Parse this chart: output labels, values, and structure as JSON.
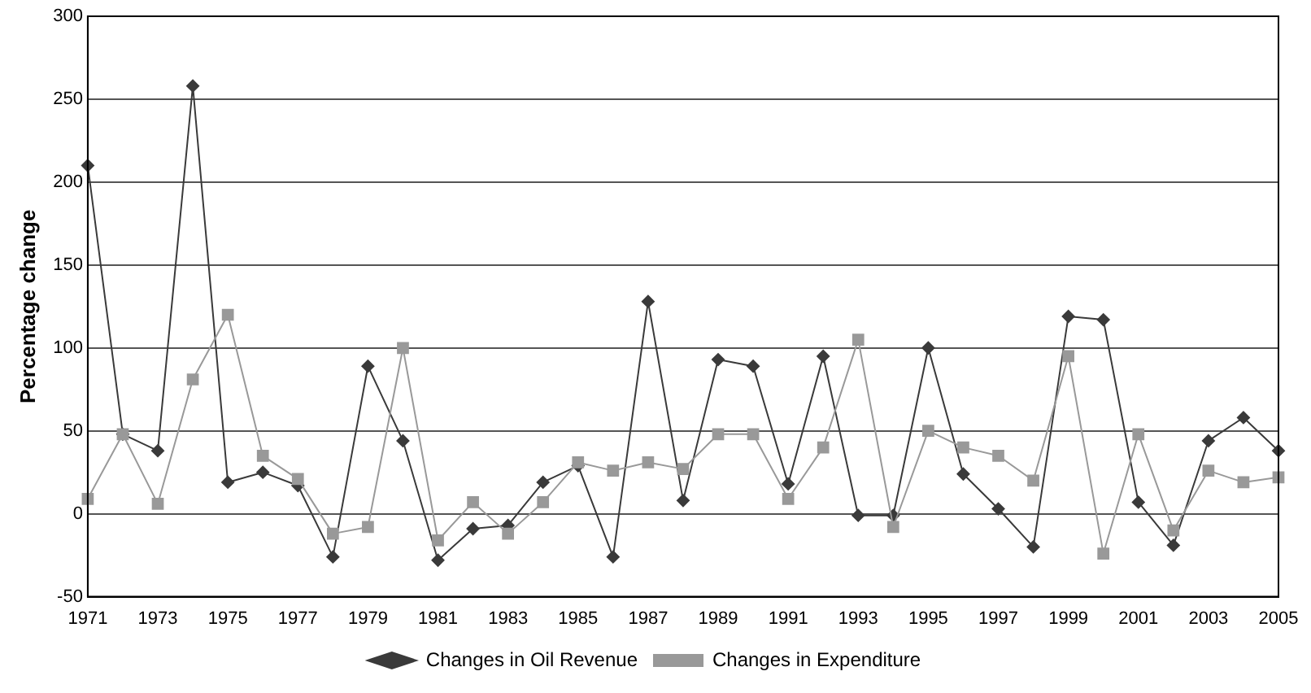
{
  "chart_data": {
    "type": "line",
    "ylabel": "Percentage change",
    "categories": [
      "1971",
      null,
      "1973",
      null,
      "1975",
      null,
      "1977",
      null,
      "1979",
      null,
      "1981",
      null,
      "1983",
      null,
      "1985",
      null,
      "1987",
      null,
      "1989",
      null,
      "1991",
      null,
      "1993",
      null,
      "1995",
      null,
      "1997",
      null,
      "1999",
      null,
      "2001",
      null,
      "2003",
      null,
      "2005"
    ],
    "series": [
      {
        "name": "Changes in Oil Revenue",
        "color": "#3a3a3a",
        "marker": "diamond",
        "values": [
          210,
          48,
          38,
          258,
          19,
          25,
          17,
          -26,
          89,
          44,
          -28,
          -9,
          -7,
          19,
          29,
          -26,
          128,
          8,
          93,
          89,
          18,
          95,
          -1,
          -1,
          100,
          24,
          3,
          -20,
          119,
          117,
          7,
          -19,
          44,
          58,
          38
        ]
      },
      {
        "name": "Changes in Expenditure",
        "color": "#999999",
        "marker": "square",
        "values": [
          9,
          48,
          6,
          81,
          120,
          35,
          21,
          -12,
          -8,
          100,
          -16,
          7,
          -12,
          7,
          31,
          26,
          31,
          27,
          48,
          48,
          9,
          40,
          105,
          -8,
          50,
          40,
          35,
          20,
          95,
          -24,
          48,
          -10,
          26,
          19,
          22
        ]
      }
    ],
    "ylim": [
      -50,
      300
    ],
    "yticks": [
      -50,
      0,
      50,
      100,
      150,
      200,
      250,
      300
    ],
    "grid": "y",
    "legend": "bottom",
    "line_style": "solid"
  }
}
